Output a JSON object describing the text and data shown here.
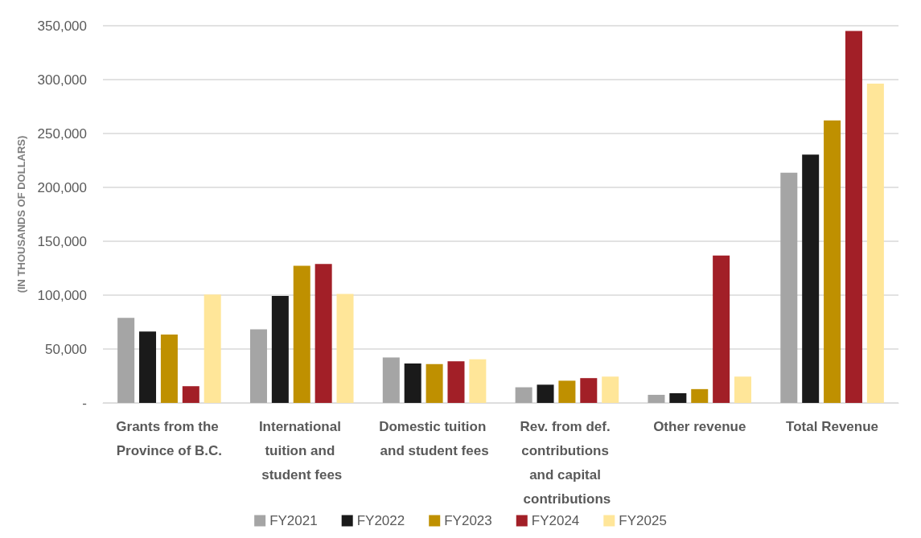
{
  "chart_data": {
    "type": "bar",
    "ylabel": "(IN THOUSANDS OF DOLLARS)",
    "categories": [
      "Grants from the Province of B.C.",
      "International tuition and student fees",
      "Domestic tuition and student fees",
      "Rev. from def. contributions and capital contributions",
      "Other revenue",
      "Total Revenue"
    ],
    "series": [
      {
        "name": "FY2021",
        "color": "#a5a5a5",
        "values": [
          78900,
          68200,
          42100,
          14500,
          7500,
          213600
        ]
      },
      {
        "name": "FY2022",
        "color": "#1a1a1a",
        "values": [
          66300,
          99200,
          36500,
          16900,
          9000,
          230500
        ]
      },
      {
        "name": "FY2023",
        "color": "#bf9000",
        "values": [
          63400,
          127200,
          36000,
          20600,
          12800,
          262200
        ]
      },
      {
        "name": "FY2024",
        "color": "#a21f27",
        "values": [
          15500,
          128900,
          38700,
          23000,
          136700,
          345200
        ]
      },
      {
        "name": "FY2025",
        "color": "#ffe699",
        "values": [
          100600,
          101100,
          40400,
          24400,
          24400,
          296300
        ]
      }
    ],
    "ylim": [
      0,
      350000
    ],
    "yticks": [
      {
        "value": 0,
        "label": "-"
      },
      {
        "value": 50000,
        "label": "50,000"
      },
      {
        "value": 100000,
        "label": "100,000"
      },
      {
        "value": 150000,
        "label": "150,000"
      },
      {
        "value": 200000,
        "label": "200,000"
      },
      {
        "value": 250000,
        "label": "250,000"
      },
      {
        "value": 300000,
        "label": "300,000"
      },
      {
        "value": 350000,
        "label": "350,000"
      }
    ],
    "grid": "y",
    "legend": "bottom"
  }
}
